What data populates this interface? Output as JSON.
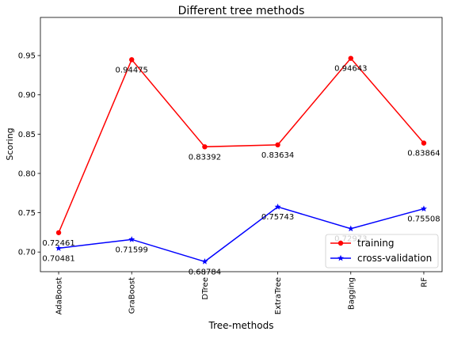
{
  "chart_data": {
    "type": "line",
    "title": "Different tree methods",
    "xlabel": "Tree-methods",
    "ylabel": "Scoring",
    "categories": [
      "AdaBoost",
      "GraBoost",
      "DTree",
      "ExtraTree",
      "Bagging",
      "RF"
    ],
    "ylim": [
      0.675,
      0.9985
    ],
    "y_ticks": [
      0.7,
      0.75,
      0.8,
      0.85,
      0.9,
      0.95
    ],
    "y_tick_labels": [
      "0.70",
      "0.75",
      "0.80",
      "0.85",
      "0.90",
      "0.95"
    ],
    "grid": false,
    "legend_position": "lower-right",
    "series": [
      {
        "name": "training",
        "color": "#ff0000",
        "marker": "circle",
        "values": [
          0.72461,
          0.94475,
          0.83392,
          0.83634,
          0.94643,
          0.83864
        ],
        "labels": [
          "0.72461",
          "0.94475",
          "0.83392",
          "0.83634",
          "0.94643",
          "0.83864"
        ]
      },
      {
        "name": "cross-validation",
        "color": "#0000ff",
        "marker": "star",
        "values": [
          0.70481,
          0.71599,
          0.68784,
          0.75743,
          0.72973,
          0.75508
        ],
        "labels": [
          "0.70481",
          "0.71599",
          "0.68784",
          "0.75743",
          "0.72973",
          "0.75508"
        ]
      }
    ]
  }
}
